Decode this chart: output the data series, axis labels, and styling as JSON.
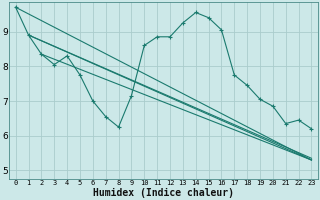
{
  "title": "",
  "xlabel": "Humidex (Indice chaleur)",
  "bg_color": "#cce8e8",
  "grid_color": "#aacccc",
  "line_color": "#1a7a6e",
  "xlim": [
    -0.5,
    23.5
  ],
  "ylim": [
    4.75,
    9.85
  ],
  "xticks": [
    0,
    1,
    2,
    3,
    4,
    5,
    6,
    7,
    8,
    9,
    10,
    11,
    12,
    13,
    14,
    15,
    16,
    17,
    18,
    19,
    20,
    21,
    22,
    23
  ],
  "yticks": [
    5,
    6,
    7,
    8,
    9
  ],
  "series": [
    {
      "x": [
        0,
        1,
        2,
        3,
        4,
        5,
        6,
        7,
        8,
        9,
        10,
        11,
        12,
        13,
        14,
        15,
        16,
        17,
        18,
        19,
        20,
        21,
        22,
        23
      ],
      "y": [
        9.7,
        8.9,
        8.35,
        8.05,
        8.3,
        7.75,
        7.0,
        6.55,
        6.25,
        7.15,
        8.6,
        8.85,
        8.85,
        9.25,
        9.55,
        9.4,
        9.05,
        7.75,
        7.45,
        7.05,
        6.85,
        6.35,
        6.45,
        6.2
      ]
    },
    {
      "x": [
        0,
        23
      ],
      "y": [
        9.7,
        5.3
      ]
    },
    {
      "x": [
        1,
        23
      ],
      "y": [
        8.9,
        5.3
      ]
    },
    {
      "x": [
        1,
        23
      ],
      "y": [
        8.9,
        5.35
      ]
    },
    {
      "x": [
        2,
        23
      ],
      "y": [
        8.35,
        5.3
      ]
    }
  ]
}
